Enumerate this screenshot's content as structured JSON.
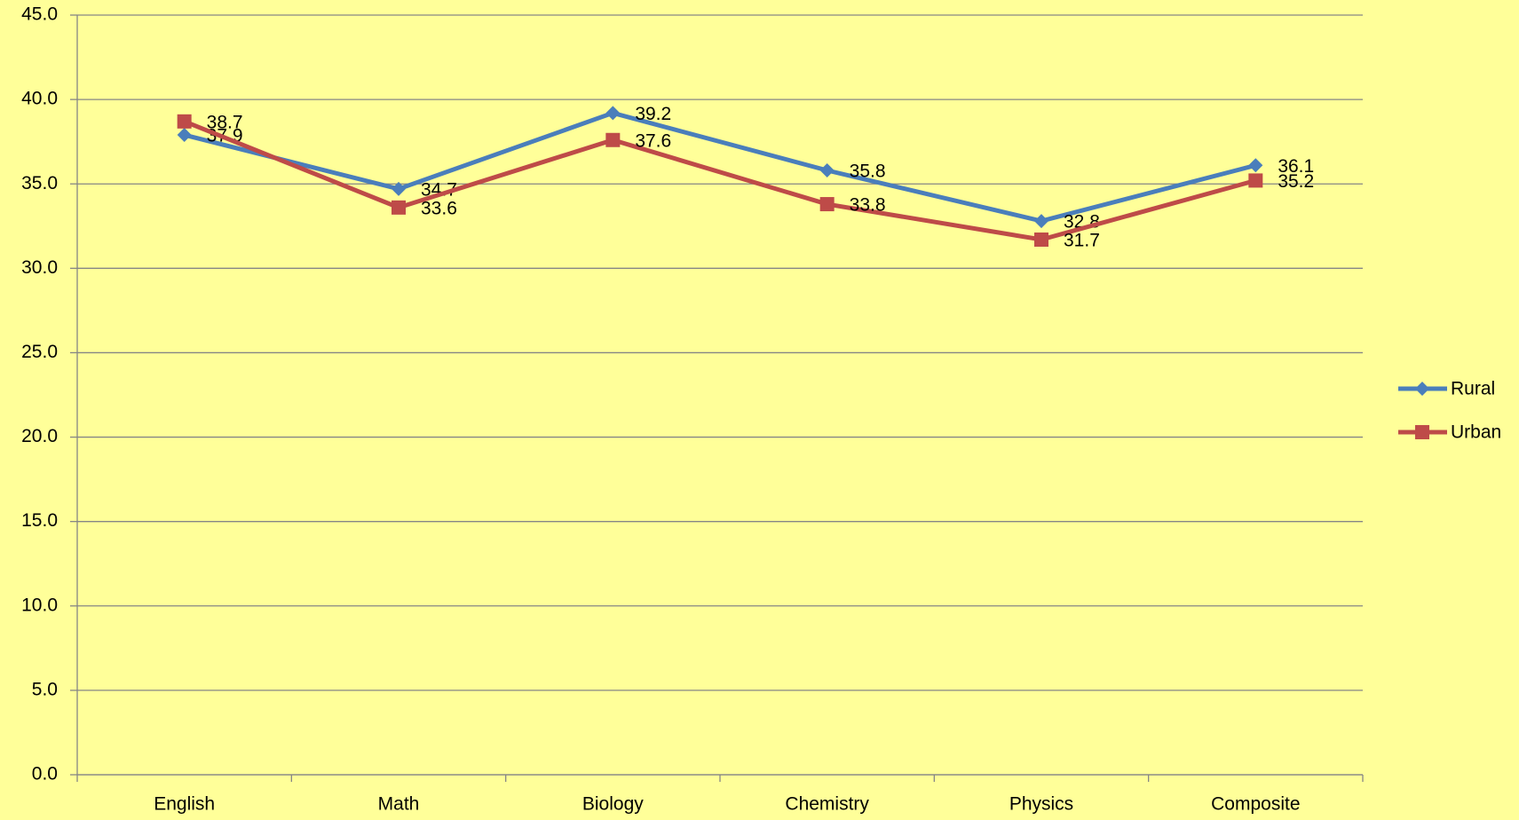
{
  "chart_data": {
    "type": "line",
    "categories": [
      "English",
      "Math",
      "Biology",
      "Chemistry",
      "Physics",
      "Composite"
    ],
    "series": [
      {
        "name": "Rural",
        "color": "#4a7ebb",
        "values": [
          37.9,
          34.7,
          39.2,
          35.8,
          32.8,
          36.1
        ]
      },
      {
        "name": "Urban",
        "color": "#be4b48",
        "values": [
          38.7,
          33.6,
          37.6,
          33.8,
          31.7,
          35.2
        ]
      }
    ],
    "ylim": [
      0,
      45
    ],
    "yticks": [
      {
        "value": 0,
        "label": "0.0"
      },
      {
        "value": 5,
        "label": "5.0"
      },
      {
        "value": 10,
        "label": "10.0"
      },
      {
        "value": 15,
        "label": "15.0"
      },
      {
        "value": 20,
        "label": "20.0"
      },
      {
        "value": 25,
        "label": "25.0"
      },
      {
        "value": 30,
        "label": "30.0"
      },
      {
        "value": 35,
        "label": "35.0"
      },
      {
        "value": 40,
        "label": "40.0"
      },
      {
        "value": 45,
        "label": "45.0"
      }
    ],
    "grid": true,
    "legend": "right"
  }
}
